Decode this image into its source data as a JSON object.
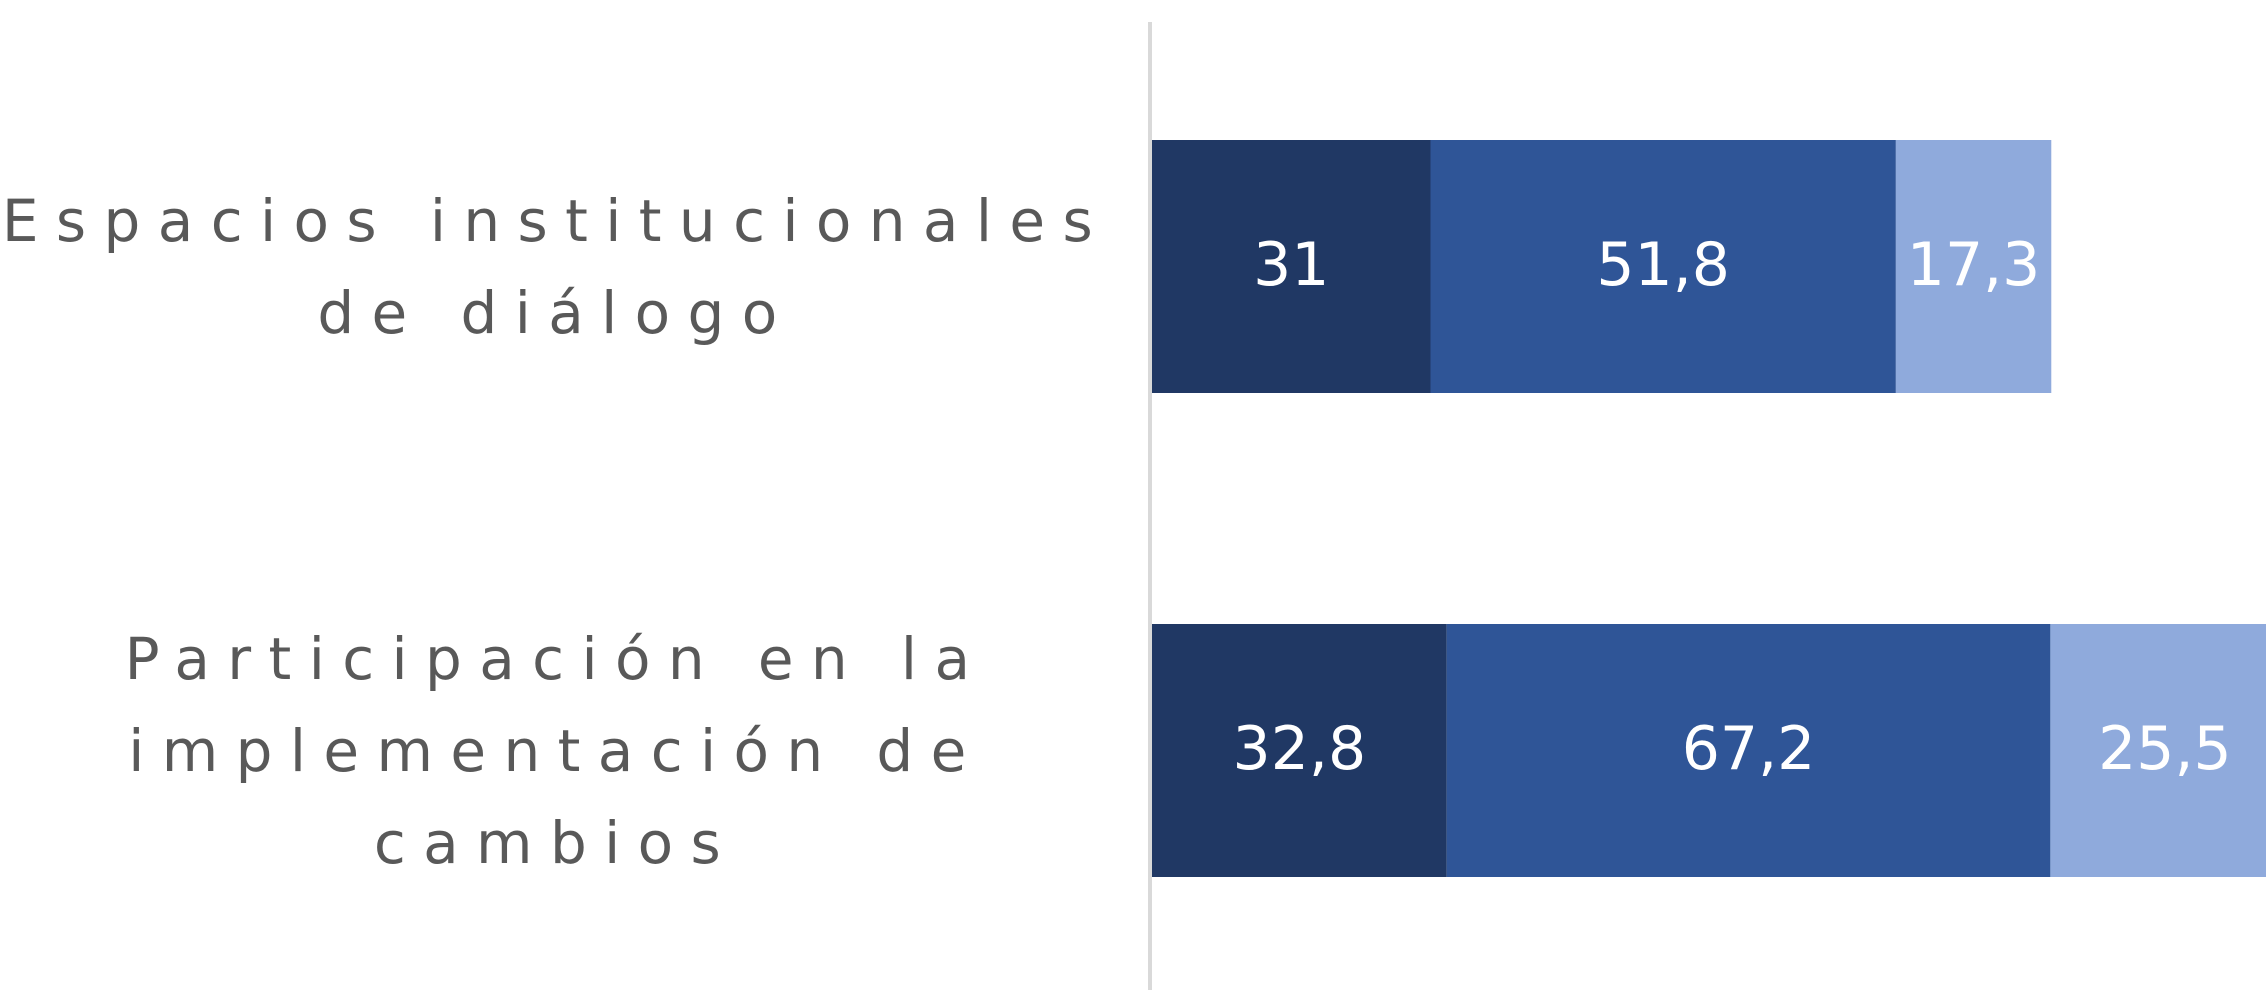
{
  "chart_data": {
    "type": "bar",
    "orientation": "horizontal",
    "stacked": true,
    "categories": [
      "Espacios institucionales de diálogo",
      "Participación en la implementación de cambios"
    ],
    "series": [
      {
        "color": "#203864",
        "values": [
          31,
          32.8
        ],
        "value_labels": [
          "31",
          "32,8"
        ]
      },
      {
        "color": "#2f5597",
        "values": [
          51.8,
          67.2
        ],
        "value_labels": [
          "51,8",
          "67,2"
        ]
      },
      {
        "color": "#8faadc",
        "values": [
          17.3,
          25.5
        ],
        "value_labels": [
          "17,3",
          "25,5"
        ]
      }
    ],
    "xlim": [
      0,
      124
    ]
  }
}
